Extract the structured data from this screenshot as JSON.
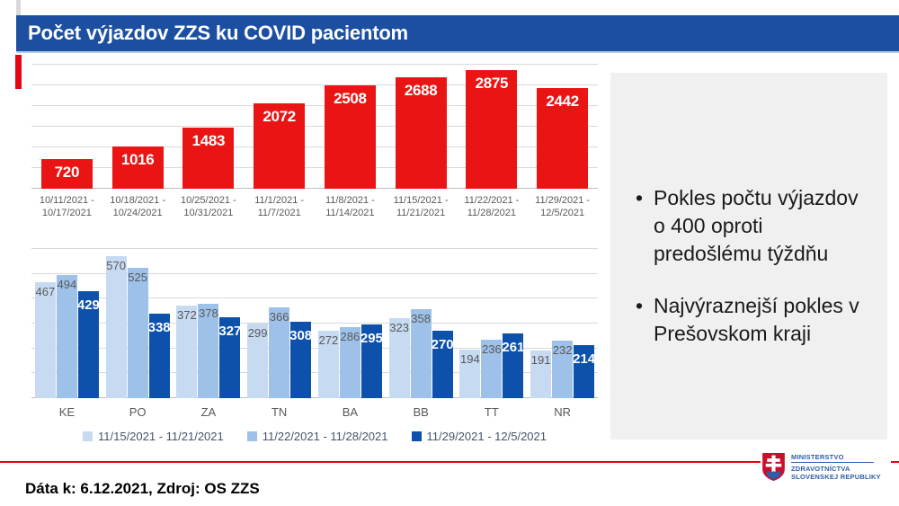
{
  "title": "Počet výjazdov ZZS ku COVID pacientom",
  "colors": {
    "title_bar_blue": "#1C4FA0",
    "title_underline_blue": "#B4CDEB",
    "accent_red": "#E30613",
    "weekly_bar_red": "#EB1414",
    "series_light_blue": "#C6DAF2",
    "series_mid_blue": "#9DC1E9",
    "series_dark_blue": "#0D51AD",
    "gridline_gray": "#D9D9D9",
    "label_gray": "#595959",
    "panel_gray": "#F0F0F0",
    "logo_blue": "#2E5EA8",
    "shield_red": "#C8102E"
  },
  "chart_data": [
    {
      "type": "bar",
      "name": "weekly-covid-dispatches",
      "categories": [
        "10/11/2021 - 10/17/2021",
        "10/18/2021 - 10/24/2021",
        "10/25/2021 - 10/31/2021",
        "11/1/2021 - 11/7/2021",
        "11/8/2021 - 11/14/2021",
        "11/15/2021 - 11/21/2021",
        "11/22/2021 - 11/28/2021",
        "11/29/2021 - 12/5/2021"
      ],
      "values": [
        720,
        1016,
        1483,
        2072,
        2508,
        2688,
        2875,
        2442
      ],
      "bar_color": "#EB1414",
      "value_label_color": "#FFFFFF",
      "title": "",
      "xlabel": "",
      "ylabel": "",
      "ylim": [
        0,
        3000
      ],
      "grid_step": 500,
      "grid": true,
      "legend": false
    },
    {
      "type": "bar",
      "name": "regional-dispatches-by-week",
      "categories": [
        "KE",
        "PO",
        "ZA",
        "TN",
        "BA",
        "BB",
        "TT",
        "NR"
      ],
      "series": [
        {
          "name": "11/15/2021 - 11/21/2021",
          "color": "#C6DAF2",
          "values": [
            467,
            570,
            372,
            299,
            272,
            323,
            194,
            191
          ]
        },
        {
          "name": "11/22/2021 - 11/28/2021",
          "color": "#9DC1E9",
          "values": [
            494,
            525,
            378,
            366,
            286,
            358,
            236,
            232
          ]
        },
        {
          "name": "11/29/2021 - 12/5/2021",
          "color": "#0D51AD",
          "values": [
            429,
            338,
            327,
            308,
            295,
            270,
            261,
            214
          ]
        }
      ],
      "title": "",
      "xlabel": "",
      "ylabel": "",
      "ylim": [
        0,
        600
      ],
      "grid_step": 100,
      "grid": true,
      "legend": true,
      "legend_position": "bottom"
    }
  ],
  "insights": {
    "bullets": [
      "Pokles počtu výjazdov o 400 oproti predošlému týždňu",
      "Najvýraznejší pokles v Prešovskom kraji"
    ]
  },
  "footer": {
    "data_note": "Dáta k: 6.12.2021, Zdroj: OS ZZS"
  },
  "logo": {
    "lines": [
      "MINISTERSTVO",
      "ZDRAVOTNÍCTVA",
      "SLOVENSKEJ REPUBLIKY"
    ]
  }
}
